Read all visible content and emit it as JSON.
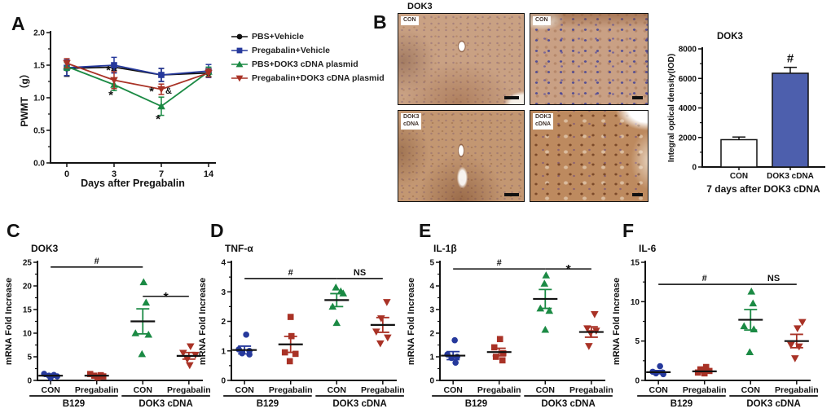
{
  "panels": {
    "a": "A",
    "b": "B",
    "c": "C",
    "d": "D",
    "e": "E",
    "f": "F"
  },
  "colors": {
    "black": "#111111",
    "blue": "#26399c",
    "green": "#1b8a44",
    "red": "#a93226",
    "bar_blue": "#4d5fad",
    "bar_white": "#ffffff"
  },
  "panel_b": {
    "title": "DOK3",
    "images": [
      {
        "label": "CON"
      },
      {
        "label": "CON"
      },
      {
        "label": "DOK3\ncDNA"
      },
      {
        "label": "DOK3\ncDNA"
      }
    ]
  },
  "chart_data": [
    {
      "id": "panelA",
      "type": "line",
      "xlabel": "Days after Pregabalin",
      "ylabel": "PWMT （g）",
      "x_ticks": [
        "0",
        "3",
        "7",
        "14"
      ],
      "ylim": [
        0,
        2
      ],
      "yticks": [
        0,
        0.5,
        1,
        1.5,
        2
      ],
      "ytick_labels": [
        "0.0",
        "0.5",
        "1.0",
        "1.5",
        "2.0"
      ],
      "yminor": 0.25,
      "series": [
        {
          "name": "PBS+Vehicle",
          "marker": "circle",
          "color": "black",
          "values": [
            1.45,
            1.47,
            1.35,
            1.38
          ],
          "errors": [
            0.12,
            0.05,
            0.1,
            0.06
          ]
        },
        {
          "name": "Pregabalin+Vehicle",
          "marker": "square",
          "color": "blue",
          "values": [
            1.46,
            1.5,
            1.35,
            1.41
          ],
          "errors": [
            0.12,
            0.12,
            0.1,
            0.1
          ]
        },
        {
          "name": "PBS+DOK3 cDNA plasmid",
          "marker": "triangle-up",
          "color": "green",
          "values": [
            1.48,
            1.2,
            0.87,
            1.4
          ],
          "errors": [
            0.06,
            0.09,
            0.14,
            0.07
          ]
        },
        {
          "name": "Pregabalin+DOK3 cDNA plasmid",
          "marker": "triangle-down",
          "color": "red",
          "values": [
            1.53,
            1.27,
            1.13,
            1.38
          ],
          "errors": [
            0.07,
            0.13,
            0.08,
            0.06
          ]
        }
      ],
      "annotations": [
        {
          "text": "*",
          "color": "red",
          "x": 1,
          "y": 1.41,
          "dx": -7
        },
        {
          "text": "*",
          "color": "green",
          "x": 1,
          "y": 1.03,
          "dx": -4
        },
        {
          "text": "*",
          "color": "red",
          "x": 2,
          "y": 1.09,
          "dx": -12
        },
        {
          "text": "&",
          "color": "black",
          "x": 2,
          "y": 1.11,
          "dx": 9
        },
        {
          "text": "*",
          "color": "green",
          "x": 2,
          "y": 0.66,
          "dx": -4
        }
      ]
    },
    {
      "id": "panelB_bar",
      "type": "bar",
      "title": "DOK3",
      "xlabel": "7 days after DOK3 cDNA",
      "ylabel": "Integral optical density(IOD)",
      "categories": [
        "CON",
        "DOK3 cDNA"
      ],
      "values": [
        1850,
        6350
      ],
      "errors": [
        180,
        400
      ],
      "bar_colors": [
        "bar_white",
        "bar_blue"
      ],
      "ylim": [
        0,
        8000
      ],
      "yticks": [
        0,
        2000,
        4000,
        6000,
        8000
      ],
      "ytick_labels": [
        "0",
        "2000",
        "4000",
        "6000",
        "8000"
      ],
      "yminor": 1000,
      "annotations": [
        {
          "text": "#",
          "category": 1
        }
      ]
    },
    {
      "id": "panelC",
      "type": "scatter",
      "title": "DOK3",
      "ylabel": "mRNA Fold Increase",
      "ylim": [
        0,
        25
      ],
      "yticks": [
        0,
        5,
        10,
        15,
        20,
        25
      ],
      "ytick_labels": [
        "0",
        "5",
        "10",
        "15",
        "20",
        "25"
      ],
      "yminor": 2.5,
      "groups": [
        {
          "label": "CON",
          "marker": "circle",
          "color": "blue",
          "mean": 1.0,
          "sem": 0.15,
          "points": [
            1.4,
            1.15,
            1.0,
            0.85,
            0.6
          ],
          "jitter": [
            -8,
            4,
            -2,
            8,
            0
          ]
        },
        {
          "label": "Pregabalin",
          "marker": "square",
          "color": "red",
          "mean": 1.0,
          "sem": 0.15,
          "points": [
            1.35,
            1.1,
            1.0,
            0.85,
            0.65
          ],
          "jitter": [
            -8,
            5,
            -3,
            8,
            1
          ]
        },
        {
          "label": "CON",
          "marker": "triangle-up",
          "color": "green",
          "mean": 12.5,
          "sem": 2.65,
          "points": [
            20.8,
            16.5,
            10.0,
            9.7,
            5.6
          ],
          "jitter": [
            1,
            4,
            -9,
            7,
            -1
          ]
        },
        {
          "label": "Pregabalin",
          "marker": "triangle-down",
          "color": "red",
          "mean": 5.2,
          "sem": 0.7,
          "points": [
            7.2,
            5.8,
            5.4,
            4.5,
            3.2
          ],
          "jitter": [
            2,
            -7,
            8,
            -2,
            1
          ]
        }
      ],
      "brackets": [
        {
          "from": 0,
          "to": 2,
          "y": 24,
          "label": "#"
        },
        {
          "from": 2,
          "to": 3,
          "y": 17.8,
          "label": "*"
        }
      ],
      "bottom_labels": [
        {
          "text": "B129",
          "groups": [
            0,
            1
          ]
        },
        {
          "text": "DOK3 cDNA",
          "groups": [
            2,
            3
          ]
        }
      ]
    },
    {
      "id": "panelD",
      "type": "scatter",
      "title": "TNF-α",
      "ylabel": "mRNA Fold Increase",
      "ylim": [
        0,
        4
      ],
      "yticks": [
        0,
        1,
        2,
        3,
        4
      ],
      "ytick_labels": [
        "0",
        "1",
        "2",
        "3",
        "4"
      ],
      "yminor": 0.5,
      "groups": [
        {
          "label": "CON",
          "marker": "circle",
          "color": "blue",
          "mean": 1.03,
          "sem": 0.13,
          "points": [
            1.55,
            1.05,
            1.0,
            0.92,
            0.88
          ],
          "jitter": [
            2,
            -7,
            6,
            -3,
            6
          ]
        },
        {
          "label": "Pregabalin",
          "marker": "square",
          "color": "red",
          "mean": 1.22,
          "sem": 0.27,
          "points": [
            2.15,
            1.5,
            0.95,
            0.9,
            0.65
          ],
          "jitter": [
            0,
            1,
            -7,
            6,
            -1
          ]
        },
        {
          "label": "CON",
          "marker": "triangle-up",
          "color": "green",
          "mean": 2.72,
          "sem": 0.22,
          "points": [
            3.15,
            3.02,
            2.95,
            2.5,
            1.95
          ],
          "jitter": [
            -1,
            5,
            8,
            -5,
            0
          ]
        },
        {
          "label": "Pregabalin",
          "marker": "triangle-down",
          "color": "red",
          "mean": 1.88,
          "sem": 0.25,
          "points": [
            2.65,
            2.1,
            1.65,
            1.45,
            1.25
          ],
          "jitter": [
            5,
            -2,
            -8,
            6,
            -3
          ]
        }
      ],
      "brackets": [
        {
          "from": 0,
          "to": 2,
          "y": 3.45,
          "label": "#"
        },
        {
          "from": 2,
          "to": 3,
          "y": 3.45,
          "label": "NS"
        }
      ],
      "bottom_labels": [
        {
          "text": "B129",
          "groups": [
            0,
            1
          ]
        },
        {
          "text": "DOK3 cDNA",
          "groups": [
            2,
            3
          ]
        }
      ]
    },
    {
      "id": "panelE",
      "type": "scatter",
      "title": "IL-1β",
      "ylabel": "mRNA Fold Increase",
      "ylim": [
        0,
        5
      ],
      "yticks": [
        0,
        1,
        2,
        3,
        4,
        5
      ],
      "ytick_labels": [
        "0",
        "1",
        "2",
        "3",
        "4",
        "5"
      ],
      "yminor": 0.5,
      "groups": [
        {
          "label": "CON",
          "marker": "circle",
          "color": "blue",
          "mean": 1.05,
          "sem": 0.17,
          "points": [
            1.7,
            1.1,
            1.0,
            0.95,
            0.75
          ],
          "jitter": [
            2,
            -7,
            5,
            -2,
            3
          ]
        },
        {
          "label": "Pregabalin",
          "marker": "square",
          "color": "red",
          "mean": 1.2,
          "sem": 0.16,
          "points": [
            1.75,
            1.4,
            1.15,
            1.0,
            0.85
          ],
          "jitter": [
            1,
            -6,
            5,
            -4,
            4
          ]
        },
        {
          "label": "CON",
          "marker": "triangle-up",
          "color": "green",
          "mean": 3.45,
          "sem": 0.4,
          "points": [
            4.45,
            4.1,
            3.05,
            2.95,
            2.15
          ],
          "jitter": [
            1,
            -1,
            -6,
            5,
            0
          ]
        },
        {
          "label": "Pregabalin",
          "marker": "triangle-down",
          "color": "red",
          "mean": 2.05,
          "sem": 0.22,
          "points": [
            2.8,
            2.2,
            2.1,
            2.0,
            1.45
          ],
          "jitter": [
            4,
            -5,
            6,
            -1,
            -3
          ]
        }
      ],
      "brackets": [
        {
          "from": 0,
          "to": 2,
          "y": 4.72,
          "label": "#"
        },
        {
          "from": 2,
          "to": 3,
          "y": 4.72,
          "label": "*"
        }
      ],
      "bottom_labels": [
        {
          "text": "B129",
          "groups": [
            0,
            1
          ]
        },
        {
          "text": "DOK3 cDNA",
          "groups": [
            2,
            3
          ]
        }
      ]
    },
    {
      "id": "panelF",
      "type": "scatter",
      "title": "IL-6",
      "ylabel": "mRNA Fold Increase",
      "ylim": [
        0,
        15
      ],
      "yticks": [
        0,
        5,
        10,
        15
      ],
      "ytick_labels": [
        "0",
        "5",
        "10",
        "15"
      ],
      "yminor": 2.5,
      "groups": [
        {
          "label": "CON",
          "marker": "circle",
          "color": "blue",
          "mean": 1.05,
          "sem": 0.2,
          "points": [
            1.8,
            1.1,
            1.0,
            0.9,
            0.8
          ],
          "jitter": [
            2,
            -7,
            5,
            -3,
            6
          ]
        },
        {
          "label": "Pregabalin",
          "marker": "square",
          "color": "red",
          "mean": 1.15,
          "sem": 0.17,
          "points": [
            1.7,
            1.4,
            1.2,
            1.0,
            0.9
          ],
          "jitter": [
            2,
            -5,
            6,
            -8,
            0
          ]
        },
        {
          "label": "CON",
          "marker": "triangle-up",
          "color": "green",
          "mean": 7.7,
          "sem": 1.3,
          "points": [
            11.3,
            9.8,
            6.9,
            6.5,
            3.6
          ],
          "jitter": [
            1,
            3,
            -8,
            4,
            -1
          ]
        },
        {
          "label": "Pregabalin",
          "marker": "triangle-down",
          "color": "red",
          "mean": 5.0,
          "sem": 0.85,
          "points": [
            7.4,
            6.6,
            4.5,
            4.3,
            2.8
          ],
          "jitter": [
            7,
            1,
            -7,
            3,
            -2
          ]
        }
      ],
      "brackets": [
        {
          "from": 0,
          "to": 2,
          "y": 12.2,
          "label": "#"
        },
        {
          "from": 2,
          "to": 3,
          "y": 12.2,
          "label": "NS"
        }
      ],
      "bottom_labels": [
        {
          "text": "B129",
          "groups": [
            0,
            1
          ]
        },
        {
          "text": "DOK3 cDNA",
          "groups": [
            2,
            3
          ]
        }
      ]
    }
  ]
}
